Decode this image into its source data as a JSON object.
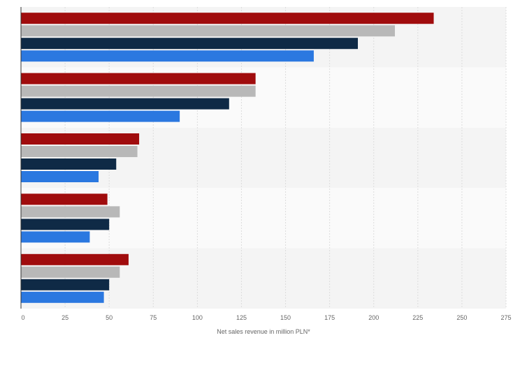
{
  "chart_data": {
    "type": "bar",
    "orientation": "horizontal",
    "title": "",
    "xlabel": "Net sales revenue in million PLN*",
    "ylabel": "",
    "xlim": [
      0,
      275
    ],
    "xticks": [
      0,
      25,
      50,
      75,
      100,
      125,
      150,
      175,
      200,
      225,
      250,
      275
    ],
    "grid": true,
    "legend": "none",
    "categories": [
      "",
      "",
      "",
      "",
      ""
    ],
    "series": [
      {
        "color": "#a00c0d",
        "values": [
          234,
          133,
          67,
          49,
          61
        ]
      },
      {
        "color": "#b8b8b8",
        "values": [
          212,
          133,
          66,
          56,
          56
        ]
      },
      {
        "color": "#0f2a46",
        "values": [
          191,
          118,
          54,
          50,
          50
        ]
      },
      {
        "color": "#2b78e0",
        "values": [
          166,
          90,
          44,
          39,
          47
        ]
      }
    ]
  }
}
